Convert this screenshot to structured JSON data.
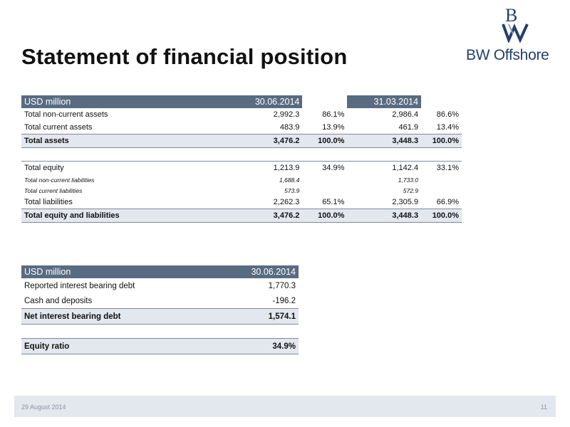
{
  "title": "Statement of financial position",
  "logo": {
    "text": "BW Offshore",
    "mark_icon": "bw-monogram-icon"
  },
  "table1": {
    "header": {
      "label": "USD million",
      "col1": "30.06.2014",
      "col2": "31.03.2014"
    },
    "rows": [
      {
        "label": "Total non-current assets",
        "v1": "2,992.3",
        "p1": "86.1%",
        "v2": "2,986.4",
        "p2": "86.6%",
        "style": "row"
      },
      {
        "label": "Total current assets",
        "v1": "483.9",
        "p1": "13.9%",
        "v2": "461.9",
        "p2": "13.4%",
        "style": "row"
      },
      {
        "label": "Total assets",
        "v1": "3,476.2",
        "p1": "100.0%",
        "v2": "3,448.3",
        "p2": "100.0%",
        "style": "tot"
      },
      {
        "label": "",
        "v1": "",
        "p1": "",
        "v2": "",
        "p2": "",
        "style": "spacer"
      },
      {
        "label": "Total equity",
        "v1": "1,213.9",
        "p1": "34.9%",
        "v2": "1,142.4",
        "p2": "33.1%",
        "style": "row"
      },
      {
        "label": "Total non-current liabilities",
        "v1": "1,688.4",
        "p1": "",
        "v2": "1,733.0",
        "p2": "",
        "style": "sub"
      },
      {
        "label": "Total current liabilities",
        "v1": "573.9",
        "p1": "",
        "v2": "572.9",
        "p2": "",
        "style": "sub"
      },
      {
        "label": "Total liabilities",
        "v1": "2,262.3",
        "p1": "65.1%",
        "v2": "2,305.9",
        "p2": "66.9%",
        "style": "row"
      },
      {
        "label": "Total equity and liabilities",
        "v1": "3,476.2",
        "p1": "100.0%",
        "v2": "3,448.3",
        "p2": "100.0%",
        "style": "tot"
      }
    ]
  },
  "table2": {
    "header": {
      "label": "USD million",
      "col1": "30.06.2014"
    },
    "rows": [
      {
        "label": "Reported interest bearing debt",
        "v1": "1,770.3",
        "style": "row"
      },
      {
        "label": "Cash and deposits",
        "v1": "-196.2",
        "style": "row"
      },
      {
        "label": "Net interest bearing debt",
        "v1": "1,574.1",
        "style": "tot"
      },
      {
        "label": "",
        "v1": "",
        "style": "spacer"
      },
      {
        "label": "Equity ratio",
        "v1": "34.9%",
        "style": "tot"
      }
    ]
  },
  "footer": {
    "date": "29 August 2014",
    "page": "11"
  },
  "colors": {
    "header_bg": "#586b80",
    "total_bg": "#e3e7ee",
    "brand": "#24406b"
  }
}
